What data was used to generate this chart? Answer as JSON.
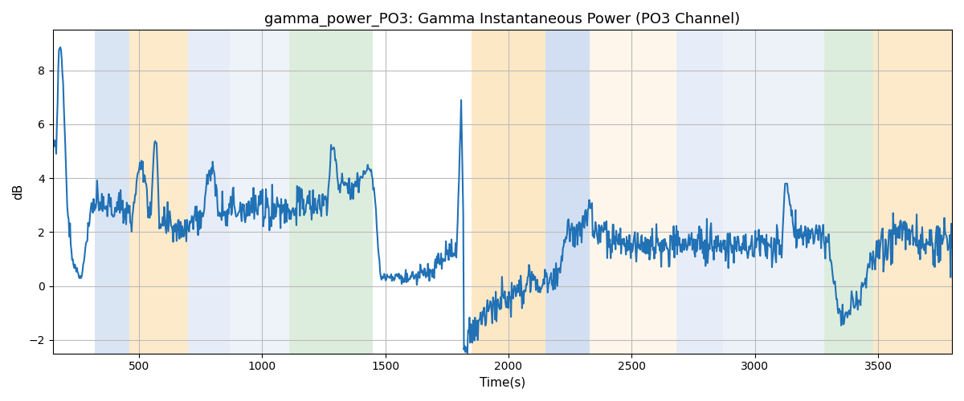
{
  "title": "gamma_power_PO3: Gamma Instantaneous Power (PO3 Channel)",
  "xlabel": "Time(s)",
  "ylabel": "dB",
  "xlim": [
    150,
    3800
  ],
  "ylim": [
    -2.5,
    9.5
  ],
  "background_bands": [
    {
      "xmin": 320,
      "xmax": 460,
      "color": "#aec6e8",
      "alpha": 0.45
    },
    {
      "xmin": 460,
      "xmax": 700,
      "color": "#fdd9a0",
      "alpha": 0.55
    },
    {
      "xmin": 700,
      "xmax": 870,
      "color": "#aec6e8",
      "alpha": 0.3
    },
    {
      "xmin": 870,
      "xmax": 1110,
      "color": "#aec6e8",
      "alpha": 0.2
    },
    {
      "xmin": 1110,
      "xmax": 1450,
      "color": "#b5d9b5",
      "alpha": 0.45
    },
    {
      "xmin": 1850,
      "xmax": 2150,
      "color": "#fdd9a0",
      "alpha": 0.6
    },
    {
      "xmin": 2150,
      "xmax": 2330,
      "color": "#aec6e8",
      "alpha": 0.55
    },
    {
      "xmin": 2330,
      "xmax": 2680,
      "color": "#fdd9a0",
      "alpha": 0.22
    },
    {
      "xmin": 2680,
      "xmax": 2870,
      "color": "#aec6e8",
      "alpha": 0.3
    },
    {
      "xmin": 2870,
      "xmax": 3080,
      "color": "#aec6e8",
      "alpha": 0.22
    },
    {
      "xmin": 3080,
      "xmax": 3280,
      "color": "#aec6e8",
      "alpha": 0.22
    },
    {
      "xmin": 3280,
      "xmax": 3480,
      "color": "#b5d9b5",
      "alpha": 0.45
    },
    {
      "xmin": 3480,
      "xmax": 3800,
      "color": "#fdd9a0",
      "alpha": 0.55
    }
  ],
  "line_color": "#2171b5",
  "line_width": 1.5,
  "grid_color": "#bbbbbb",
  "title_fontsize": 13,
  "tick_fontsize": 10,
  "label_fontsize": 11,
  "figure_facecolor": "#ffffff"
}
